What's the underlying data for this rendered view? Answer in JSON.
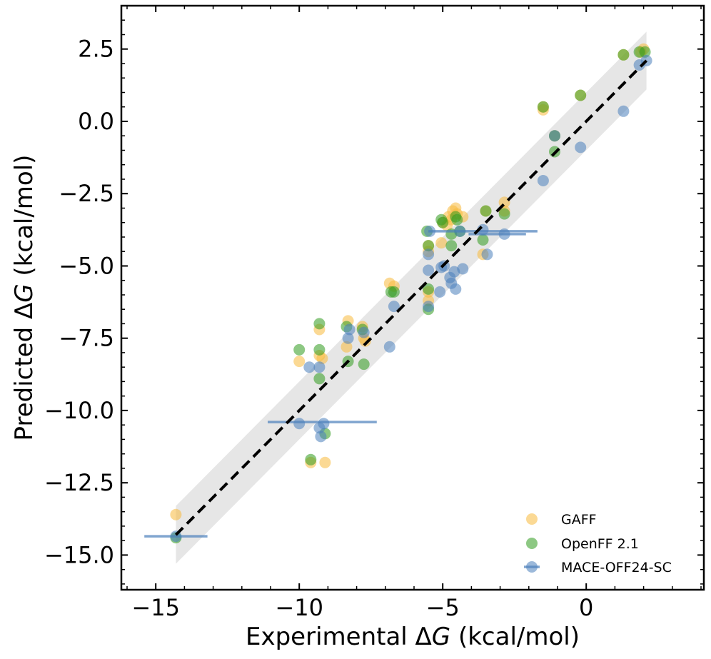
{
  "chart_data": {
    "type": "scatter",
    "xlabel_prefix": "Experimental Δ",
    "xlabel_var": "G",
    "xlabel_suffix": " (kcal/mol)",
    "ylabel_prefix": "Predicted Δ",
    "ylabel_var": "G",
    "ylabel_suffix": " (kcal/mol)",
    "xlim": [
      -16.2,
      4.1
    ],
    "ylim": [
      -16.2,
      4.0
    ],
    "x_ticks": [
      -15,
      -10,
      -5,
      0
    ],
    "x_tick_labels": [
      "−15",
      "−10",
      "−5",
      "0"
    ],
    "y_ticks": [
      2.5,
      0.0,
      -2.5,
      -5.0,
      -7.5,
      -10.0,
      -12.5,
      -15.0
    ],
    "y_tick_labels": [
      "2.5",
      "0.0",
      "−2.5",
      "−5.0",
      "−7.5",
      "−10.0",
      "−12.5",
      "−15.0"
    ],
    "reference_line": {
      "style": "dashed",
      "color": "#000000",
      "x": [
        -14.3,
        2.1
      ],
      "y": [
        -14.3,
        2.1
      ]
    },
    "confidence_band": {
      "color": "#e6e6e6",
      "half_width": 1.0,
      "x": [
        -14.3,
        2.1
      ]
    },
    "legend": {
      "position": "bottom-right",
      "entries": [
        "GAFF",
        "OpenFF 2.1",
        "MACE-OFF24-SC"
      ]
    },
    "series": [
      {
        "name": "GAFF",
        "color": "#f8b93c",
        "points": [
          [
            -14.3,
            -13.6
          ],
          [
            -10.0,
            -8.3
          ],
          [
            -9.6,
            -11.8
          ],
          [
            -9.3,
            -7.2
          ],
          [
            -9.3,
            -8.1
          ],
          [
            -9.2,
            -8.2
          ],
          [
            -9.1,
            -11.8
          ],
          [
            -8.3,
            -6.9
          ],
          [
            -8.35,
            -7.8
          ],
          [
            -7.8,
            -7.1
          ],
          [
            -7.75,
            -7.5
          ],
          [
            -7.7,
            -7.6
          ],
          [
            -6.85,
            -5.6
          ],
          [
            -6.7,
            -5.7
          ],
          [
            -5.5,
            -4.3
          ],
          [
            -5.5,
            -4.5
          ],
          [
            -5.5,
            -6.2
          ],
          [
            -5.5,
            -5.9
          ],
          [
            -5.05,
            -4.2
          ],
          [
            -5.0,
            -3.5
          ],
          [
            -4.85,
            -3.6
          ],
          [
            -4.8,
            -3.3
          ],
          [
            -4.7,
            -3.4
          ],
          [
            -4.65,
            -3.1
          ],
          [
            -4.55,
            -3.0
          ],
          [
            -4.5,
            -3.2
          ],
          [
            -4.3,
            -3.3
          ],
          [
            -3.6,
            -4.6
          ],
          [
            -3.5,
            -3.1
          ],
          [
            -2.85,
            -2.8
          ],
          [
            -2.85,
            -3.1
          ],
          [
            -1.5,
            0.4
          ],
          [
            -1.5,
            0.5
          ],
          [
            -1.1,
            -0.5
          ],
          [
            -0.2,
            0.9
          ],
          [
            1.3,
            2.3
          ],
          [
            1.9,
            2.4
          ],
          [
            2.0,
            2.5
          ]
        ]
      },
      {
        "name": "OpenFF 2.1",
        "color": "#2f9a1e",
        "points": [
          [
            -14.3,
            -14.4
          ],
          [
            -10.0,
            -7.9
          ],
          [
            -9.6,
            -11.7
          ],
          [
            -9.3,
            -7.0
          ],
          [
            -9.3,
            -7.9
          ],
          [
            -9.3,
            -8.9
          ],
          [
            -9.1,
            -10.8
          ],
          [
            -8.35,
            -7.1
          ],
          [
            -8.3,
            -8.3
          ],
          [
            -7.8,
            -7.2
          ],
          [
            -7.75,
            -8.4
          ],
          [
            -6.8,
            -5.9
          ],
          [
            -6.7,
            -5.9
          ],
          [
            -5.55,
            -3.8
          ],
          [
            -5.5,
            -4.3
          ],
          [
            -5.5,
            -6.5
          ],
          [
            -5.5,
            -5.8
          ],
          [
            -5.05,
            -3.4
          ],
          [
            -5.0,
            -3.5
          ],
          [
            -4.7,
            -4.3
          ],
          [
            -4.7,
            -3.9
          ],
          [
            -4.55,
            -3.3
          ],
          [
            -4.5,
            -3.4
          ],
          [
            -4.4,
            -3.8
          ],
          [
            -3.6,
            -4.1
          ],
          [
            -3.5,
            -3.1
          ],
          [
            -2.85,
            -3.2
          ],
          [
            -1.5,
            0.5
          ],
          [
            -1.1,
            -1.05
          ],
          [
            -1.1,
            -0.5
          ],
          [
            -0.2,
            0.9
          ],
          [
            1.3,
            2.3
          ],
          [
            1.85,
            2.4
          ],
          [
            2.05,
            2.4
          ]
        ]
      },
      {
        "name": "MACE-OFF24-SC",
        "color": "#4a7fbb",
        "points": [
          [
            -14.3,
            -14.35
          ],
          [
            -10.0,
            -10.45
          ],
          [
            -9.65,
            -8.5
          ],
          [
            -9.3,
            -8.5
          ],
          [
            -9.3,
            -10.6
          ],
          [
            -9.25,
            -10.9
          ],
          [
            -9.15,
            -10.45
          ],
          [
            -8.3,
            -7.5
          ],
          [
            -8.25,
            -7.2
          ],
          [
            -7.75,
            -7.3
          ],
          [
            -6.85,
            -7.8
          ],
          [
            -6.7,
            -6.4
          ],
          [
            -5.5,
            -4.6
          ],
          [
            -5.5,
            -5.15
          ],
          [
            -5.5,
            -6.4
          ],
          [
            -5.45,
            -3.8
          ],
          [
            -5.1,
            -5.9
          ],
          [
            -5.05,
            -5.05
          ],
          [
            -4.95,
            -5.0
          ],
          [
            -4.75,
            -5.4
          ],
          [
            -4.7,
            -5.6
          ],
          [
            -4.6,
            -5.2
          ],
          [
            -4.55,
            -5.8
          ],
          [
            -4.4,
            -3.8
          ],
          [
            -4.3,
            -5.1
          ],
          [
            -3.6,
            -3.75
          ],
          [
            -3.45,
            -4.6
          ],
          [
            -2.85,
            -3.9
          ],
          [
            -1.5,
            -2.05
          ],
          [
            -1.1,
            -0.5
          ],
          [
            -0.2,
            -0.9
          ],
          [
            1.3,
            0.35
          ],
          [
            1.85,
            1.95
          ],
          [
            2.1,
            2.1
          ]
        ],
        "error_bars": [
          {
            "x_low": -15.4,
            "x_high": -13.2,
            "y": -14.35
          },
          {
            "x_low": -11.1,
            "x_high": -7.3,
            "y": -10.4
          },
          {
            "x_low": -5.5,
            "x_high": -1.7,
            "y": -3.8
          },
          {
            "x_low": -4.1,
            "x_high": -2.1,
            "y": -3.9
          }
        ]
      }
    ]
  }
}
